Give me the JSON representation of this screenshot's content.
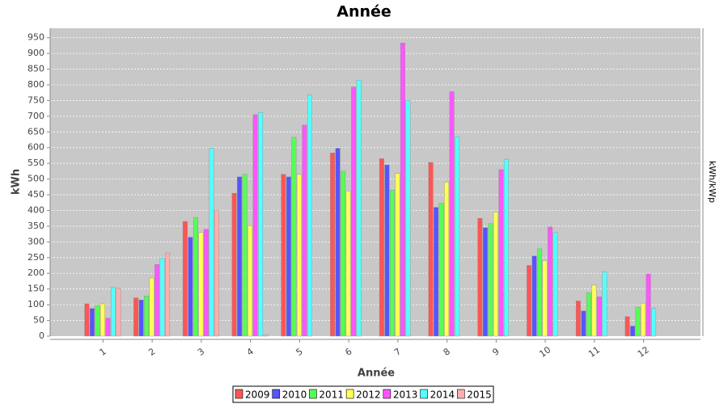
{
  "chart_data": {
    "type": "bar",
    "title": "Année",
    "x_label": "Année",
    "y_label": "kWh",
    "y2_label": "kWh/kWp",
    "categories": [
      "1",
      "2",
      "3",
      "4",
      "5",
      "6",
      "7",
      "8",
      "9",
      "10",
      "11",
      "12"
    ],
    "series": [
      {
        "name": "2009",
        "color": "#ff5555",
        "values": [
          103,
          122,
          365,
          455,
          515,
          583,
          565,
          553,
          375,
          225,
          112,
          62
        ]
      },
      {
        "name": "2010",
        "color": "#5555ff",
        "values": [
          88,
          115,
          315,
          507,
          507,
          598,
          545,
          410,
          345,
          255,
          80,
          32
        ]
      },
      {
        "name": "2011",
        "color": "#55ff55",
        "values": [
          98,
          128,
          378,
          515,
          633,
          525,
          465,
          423,
          358,
          278,
          138,
          92
        ]
      },
      {
        "name": "2012",
        "color": "#ffff55",
        "values": [
          103,
          185,
          330,
          352,
          515,
          462,
          518,
          490,
          395,
          240,
          162,
          105
        ]
      },
      {
        "name": "2013",
        "color": "#ff55ff",
        "values": [
          57,
          228,
          340,
          705,
          672,
          793,
          933,
          778,
          530,
          348,
          125,
          198
        ]
      },
      {
        "name": "2014",
        "color": "#55ffff",
        "values": [
          155,
          248,
          598,
          712,
          768,
          815,
          750,
          635,
          563,
          330,
          205,
          88
        ]
      },
      {
        "name": "2015",
        "color": "#ffafaf",
        "values": [
          152,
          265,
          400,
          5,
          null,
          null,
          null,
          null,
          null,
          null,
          null,
          null
        ]
      }
    ],
    "ylim": [
      0,
      980
    ],
    "yticks": [
      0,
      50,
      100,
      150,
      200,
      250,
      300,
      350,
      400,
      450,
      500,
      550,
      600,
      650,
      700,
      750,
      800,
      850,
      900,
      950
    ],
    "grid": true
  }
}
